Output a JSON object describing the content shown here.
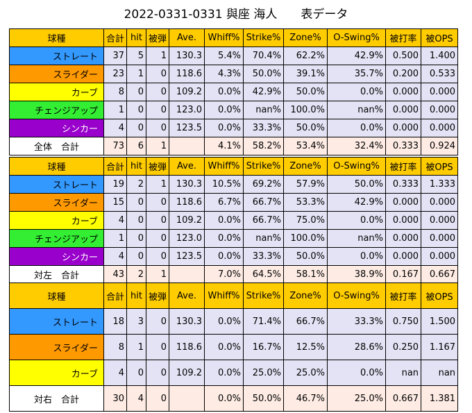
{
  "title": "2022-0331-0331 與座 海人　　表データ",
  "colors": {
    "header": "#ffcc00",
    "straight": "#3399ff",
    "slider": "#ff9900",
    "curve": "#ffff00",
    "changeup": "#33ee33",
    "sinker": "#9900cc",
    "data_cell": "#e3e3f5",
    "total_cell": "#fdebe4"
  },
  "tables": [
    {
      "headers": [
        "球種",
        "合計",
        "hit",
        "被弾",
        "Ave.",
        "Whiff%",
        "Strike%",
        "Zone%",
        "O-Swing%",
        "被打率",
        "被OPS"
      ],
      "rows": [
        {
          "label": "ストレート",
          "color": "#3399ff",
          "values": [
            "37",
            "5",
            "1",
            "130.3",
            "5.4%",
            "70.4%",
            "62.2%",
            "42.9%",
            "0.500",
            "1.400"
          ]
        },
        {
          "label": "スライダー",
          "color": "#ff9900",
          "values": [
            "23",
            "1",
            "0",
            "118.6",
            "4.3%",
            "50.0%",
            "39.1%",
            "35.7%",
            "0.200",
            "0.533"
          ]
        },
        {
          "label": "カーブ",
          "color": "#ffff00",
          "values": [
            "8",
            "0",
            "0",
            "109.2",
            "0.0%",
            "42.9%",
            "50.0%",
            "0.0%",
            "0.000",
            "0.000"
          ]
        },
        {
          "label": "チェンジアップ",
          "color": "#33ee33",
          "values": [
            "1",
            "0",
            "0",
            "123.0",
            "0.0%",
            "nan%",
            "100.0%",
            "nan%",
            "0.000",
            "0.000"
          ]
        },
        {
          "label": "シンカー",
          "color": "#9900cc",
          "values": [
            "4",
            "0",
            "0",
            "123.5",
            "0.0%",
            "33.3%",
            "50.0%",
            "0.0%",
            "0.000",
            "0.000"
          ]
        }
      ],
      "total": {
        "label": "全体　合計",
        "values": [
          "73",
          "6",
          "1",
          "",
          "4.1%",
          "58.2%",
          "53.4%",
          "32.4%",
          "0.333",
          "0.924"
        ]
      }
    },
    {
      "headers": [
        "球種",
        "合計",
        "hit",
        "被弾",
        "Ave.",
        "Whiff%",
        "Strike%",
        "Zone%",
        "O-Swing%",
        "被打率",
        "被OPS"
      ],
      "rows": [
        {
          "label": "ストレート",
          "color": "#3399ff",
          "values": [
            "19",
            "2",
            "1",
            "130.3",
            "10.5%",
            "69.2%",
            "57.9%",
            "50.0%",
            "0.333",
            "1.333"
          ]
        },
        {
          "label": "スライダー",
          "color": "#ff9900",
          "values": [
            "15",
            "0",
            "0",
            "118.6",
            "6.7%",
            "66.7%",
            "53.3%",
            "42.9%",
            "0.000",
            "0.000"
          ]
        },
        {
          "label": "カーブ",
          "color": "#ffff00",
          "values": [
            "4",
            "0",
            "0",
            "109.2",
            "0.0%",
            "66.7%",
            "75.0%",
            "0.0%",
            "0.000",
            "0.000"
          ]
        },
        {
          "label": "チェンジアップ",
          "color": "#33ee33",
          "values": [
            "1",
            "0",
            "0",
            "123.0",
            "0.0%",
            "nan%",
            "100.0%",
            "nan%",
            "0.000",
            "0.000"
          ]
        },
        {
          "label": "シンカー",
          "color": "#9900cc",
          "values": [
            "4",
            "0",
            "0",
            "123.5",
            "0.0%",
            "33.3%",
            "50.0%",
            "0.0%",
            "0.000",
            "0.000"
          ]
        }
      ],
      "total": {
        "label": "対左　合計",
        "values": [
          "43",
          "2",
          "1",
          "",
          "7.0%",
          "64.5%",
          "58.1%",
          "38.9%",
          "0.167",
          "0.667"
        ]
      }
    },
    {
      "headers": [
        "球種",
        "合計",
        "hit",
        "被弾",
        "Ave.",
        "Whiff%",
        "Strike%",
        "Zone%",
        "O-Swing%",
        "被打率",
        "被OPS"
      ],
      "rows": [
        {
          "label": "ストレート",
          "color": "#3399ff",
          "values": [
            "18",
            "3",
            "0",
            "130.3",
            "0.0%",
            "71.4%",
            "66.7%",
            "33.3%",
            "0.750",
            "1.500"
          ]
        },
        {
          "label": "スライダー",
          "color": "#ff9900",
          "values": [
            "8",
            "1",
            "0",
            "118.6",
            "0.0%",
            "16.7%",
            "12.5%",
            "28.6%",
            "0.250",
            "1.167"
          ]
        },
        {
          "label": "カーブ",
          "color": "#ffff00",
          "values": [
            "4",
            "0",
            "0",
            "109.2",
            "0.0%",
            "25.0%",
            "25.0%",
            "0.0%",
            "nan",
            "nan"
          ]
        }
      ],
      "total": {
        "label": "対右　合計",
        "values": [
          "30",
          "4",
          "0",
          "",
          "0.0%",
          "50.0%",
          "46.7%",
          "25.0%",
          "0.667",
          "1.381"
        ]
      }
    }
  ]
}
